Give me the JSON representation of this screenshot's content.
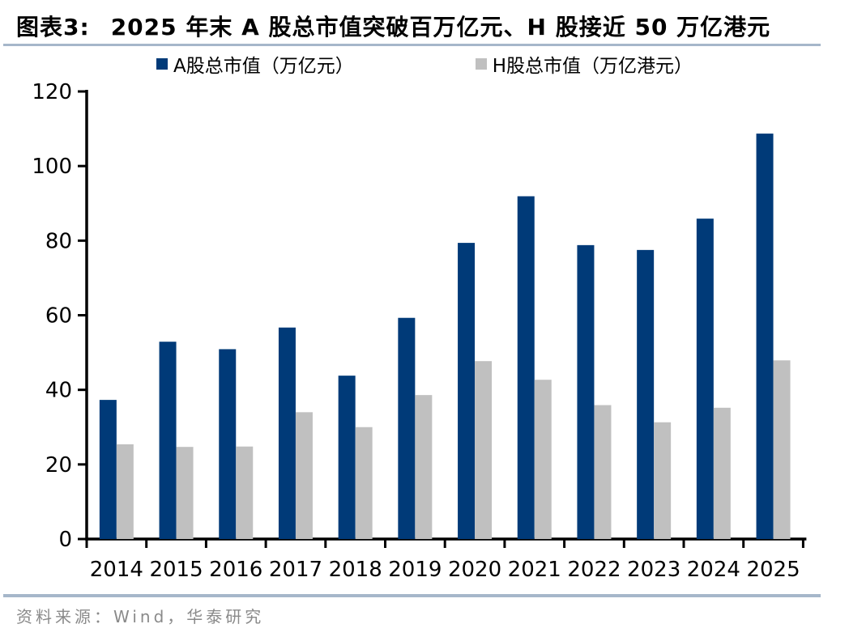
{
  "header": {
    "figure_tag": "图表3:",
    "title": "2025 年末 A 股总市值突破百万亿元、H 股接近 50 万亿港元"
  },
  "chart_data": {
    "type": "bar",
    "categories": [
      "2014",
      "2015",
      "2016",
      "2017",
      "2018",
      "2019",
      "2020",
      "2021",
      "2022",
      "2023",
      "2024",
      "2025"
    ],
    "series": [
      {
        "name": "A股总市值（万亿元）",
        "color": "#003a78",
        "values": [
          37.3,
          52.9,
          50.9,
          56.7,
          43.8,
          59.3,
          79.4,
          91.9,
          78.8,
          77.5,
          85.9,
          108.7
        ]
      },
      {
        "name": "H股总市值（万亿港元）",
        "color": "#c0c0c0",
        "values": [
          25.4,
          24.7,
          24.8,
          34.0,
          30.0,
          38.6,
          47.7,
          42.7,
          35.9,
          31.3,
          35.2,
          47.9
        ]
      }
    ],
    "title": "2025 年末 A 股总市值突破百万亿元、H 股接近 50 万亿港元",
    "xlabel": "",
    "ylabel": "",
    "ylim": [
      0,
      120
    ],
    "ytick_step": 20,
    "grid": false,
    "legend_position": "top",
    "axis_color": "#000000"
  },
  "footer": {
    "source": "资料来源：Wind，华泰研究"
  },
  "colors": {
    "separator_line": "#a6b7ca",
    "footer_text": "#8a8a8a"
  }
}
